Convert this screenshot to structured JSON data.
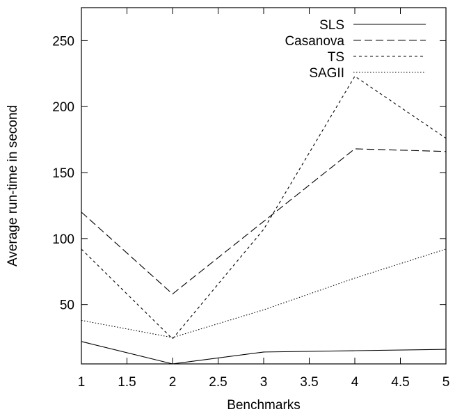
{
  "chart_data": {
    "type": "line",
    "title": "",
    "xlabel": "Benchmarks",
    "ylabel": "Average run-time in second",
    "xlim": [
      1,
      5
    ],
    "ylim": [
      5,
      275
    ],
    "xticks": [
      1,
      1.5,
      2,
      2.5,
      3,
      3.5,
      4,
      4.5,
      5
    ],
    "xtick_labels": [
      "1",
      "1.5",
      "2",
      "2.5",
      "3",
      "3.5",
      "4",
      "4.5",
      "5"
    ],
    "yticks": [
      50,
      100,
      150,
      200,
      250
    ],
    "ytick_labels": [
      "50",
      "100",
      "150",
      "200",
      "250"
    ],
    "grid": false,
    "legend_position": "top-right",
    "x": [
      1,
      2,
      3,
      4,
      5
    ],
    "series": [
      {
        "name": "SLS",
        "values": [
          22,
          5,
          14,
          15,
          16
        ],
        "dash": "solid"
      },
      {
        "name": "Casanova",
        "values": [
          120,
          58,
          113,
          168,
          166
        ],
        "dash": "long-dash"
      },
      {
        "name": "TS",
        "values": [
          92,
          24,
          107,
          223,
          176
        ],
        "dash": "short-dash"
      },
      {
        "name": "SAGII",
        "values": [
          38,
          25,
          46,
          70,
          92
        ],
        "dash": "dotted"
      }
    ]
  }
}
